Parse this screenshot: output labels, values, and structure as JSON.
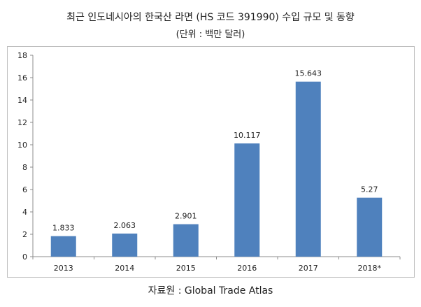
{
  "chart_data": {
    "type": "bar",
    "title": "최근 인도네시아의 한국산 라면 (HS 코드 391990) 수입 규모 및 동향",
    "subtitle": "(단위 : 백만 달러)",
    "categories": [
      "2013",
      "2014",
      "2015",
      "2016",
      "2017",
      "2018*"
    ],
    "values": [
      1.833,
      2.063,
      2.901,
      10.117,
      15.643,
      5.27
    ],
    "data_labels": [
      "1.833",
      "2.063",
      "2.901",
      "10.117",
      "15.643",
      "5.27"
    ],
    "y_ticks": [
      "0",
      "2",
      "4",
      "6",
      "8",
      "10",
      "12",
      "14",
      "16",
      "18"
    ],
    "ylim": [
      0,
      18
    ],
    "xlabel": "",
    "ylabel": "",
    "grid": false,
    "bar_color": "#4f81bd"
  },
  "source": "자료원 : Global Trade Atlas"
}
